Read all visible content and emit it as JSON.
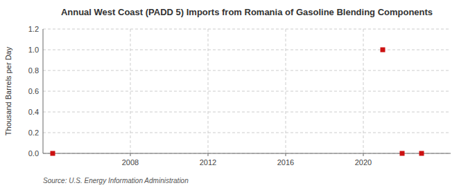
{
  "chart_data": {
    "type": "scatter",
    "title": "Annual West Coast (PADD 5) Imports from Romania of Gasoline Blending Components",
    "y_label": "Thousand Barrels per Day",
    "source": "Source: U.S. Energy Information Administration",
    "x": [
      2004,
      2021,
      2022,
      2023
    ],
    "values": [
      0.0,
      1.0,
      0.0,
      0.0
    ],
    "color": "#cc1111",
    "marker": "square",
    "xlim": [
      2003.5,
      2024.5
    ],
    "xticks": [
      2008,
      2012,
      2016,
      2020
    ],
    "ylim": [
      0,
      1.2
    ],
    "yticks": [
      {
        "value": 0.0,
        "label": "0.0"
      },
      0.2,
      0.4,
      0.6,
      0.8,
      {
        "value": 1.0,
        "label": "1.0"
      },
      1.2
    ],
    "grid": true
  }
}
